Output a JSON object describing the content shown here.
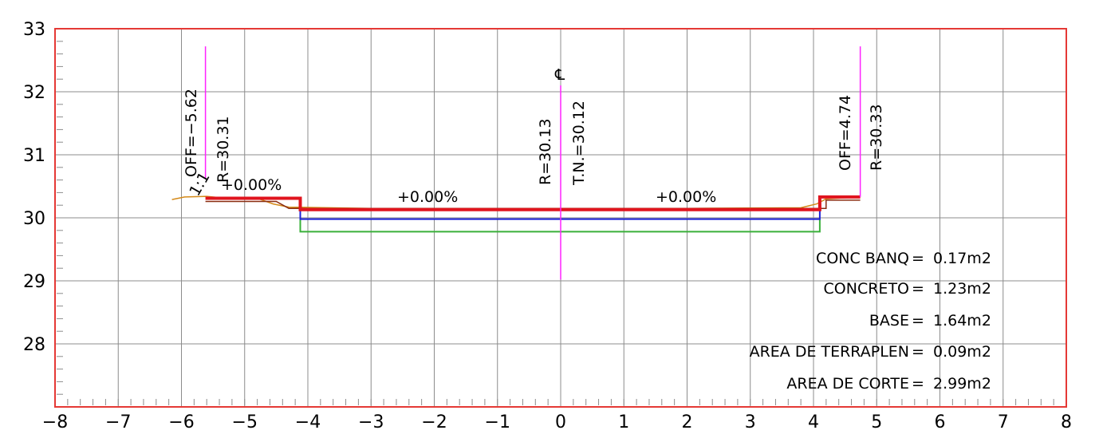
{
  "x_ticks": [
    "−8",
    "−7",
    "−6",
    "−5",
    "−4",
    "−3",
    "−2",
    "−1",
    "0",
    "1",
    "2",
    "3",
    "4",
    "5",
    "6",
    "7",
    "8"
  ],
  "y_ticks": [
    "33",
    "32",
    "31",
    "30",
    "29",
    "28"
  ],
  "axis": {
    "x_range": [
      -8,
      8
    ],
    "y_range": [
      27,
      33
    ],
    "grid": "1 unit both axes"
  },
  "annotations": {
    "off_left": "OFF=−5.62",
    "r_left": "R=30.31",
    "off_right": "OFF=4.74",
    "r_right": "R=30.33",
    "r_center": "R=30.13",
    "tn_center": "T.N.=30.12",
    "slope_side": "1:1",
    "pct_left_shoulder": "+0.00%",
    "pct_left_lane": "+0.00%",
    "pct_right_lane": "+0.00%",
    "centerline_symbol": "℄"
  },
  "quantities": [
    {
      "label": "CONC BANQ",
      "eq": "=",
      "value": "0.17m2"
    },
    {
      "label": "CONCRETO",
      "eq": "=",
      "value": "1.23m2"
    },
    {
      "label": "BASE",
      "eq": "=",
      "value": "1.64m2"
    },
    {
      "label": "AREA DE TERRAPLEN",
      "eq": "=",
      "value": "0.09m2"
    },
    {
      "label": "AREA DE CORTE",
      "eq": "=",
      "value": "2.99m2"
    }
  ],
  "section": {
    "centerline_x": 0,
    "offset_left": -5.62,
    "offset_right": 4.74,
    "curb_left_x": -4.12,
    "curb_right_x": 4.1,
    "elev_left_shoulder": 30.31,
    "elev_right_shoulder": 30.33,
    "elev_pavement": 30.13,
    "elev_base_top": 29.98,
    "elev_base_bottom": 29.78,
    "terrain_elev": 30.12
  },
  "colors": {
    "frame": "#e53935",
    "grid": "#8c8c8c",
    "pavement": "#e0141e",
    "base_blue": "#1e22d6",
    "subbase_green": "#3ab03a",
    "terrain": "#d48a1a",
    "marker": "#ff22ff",
    "existing": "#8a2b0f"
  }
}
